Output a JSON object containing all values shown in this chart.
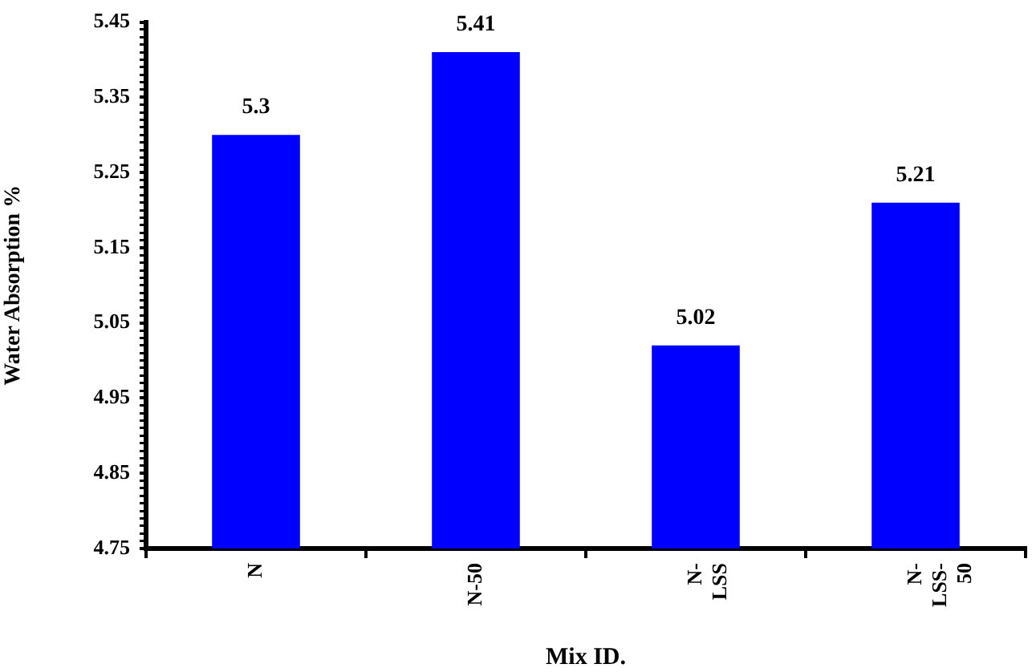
{
  "chart_data": {
    "type": "bar",
    "xlabel": "Mix ID.",
    "ylabel": "Water Absorption %",
    "categories": [
      "N",
      "N-50",
      "N-LSS",
      "N-LSS-50"
    ],
    "values": [
      5.3,
      5.41,
      5.02,
      5.21
    ],
    "color": "#0000ff",
    "ylim": [
      4.75,
      5.45
    ],
    "yticks": [
      4.75,
      {
        "value": 4.76,
        "label": null
      },
      {
        "value": 4.77,
        "label": null
      },
      {
        "value": 4.78,
        "label": null
      },
      {
        "value": 4.79,
        "label": null
      },
      {
        "value": 4.8,
        "label": null
      },
      {
        "value": 4.81,
        "label": null
      },
      {
        "value": 4.82,
        "label": null
      },
      {
        "value": 4.83,
        "label": null
      },
      {
        "value": 4.84,
        "label": null
      },
      4.85,
      {
        "value": 4.86,
        "label": null
      },
      {
        "value": 4.87,
        "label": null
      },
      {
        "value": 4.88,
        "label": null
      },
      {
        "value": 4.89,
        "label": null
      },
      {
        "value": 4.9,
        "label": null
      },
      {
        "value": 4.91,
        "label": null
      },
      {
        "value": 4.92,
        "label": null
      },
      {
        "value": 4.93,
        "label": null
      },
      {
        "value": 4.94,
        "label": null
      },
      4.95,
      {
        "value": 4.96,
        "label": null
      },
      {
        "value": 4.97,
        "label": null
      },
      {
        "value": 4.98,
        "label": null
      },
      {
        "value": 4.99,
        "label": null
      },
      {
        "value": 5.0,
        "label": null
      },
      {
        "value": 5.01,
        "label": null
      },
      {
        "value": 5.02,
        "label": null
      },
      {
        "value": 5.03,
        "label": null
      },
      {
        "value": 5.04,
        "label": null
      },
      5.05,
      {
        "value": 5.06,
        "label": null
      },
      {
        "value": 5.07,
        "label": null
      },
      {
        "value": 5.08,
        "label": null
      },
      {
        "value": 5.09,
        "label": null
      },
      {
        "value": 5.1,
        "label": null
      },
      {
        "value": 5.11,
        "label": null
      },
      {
        "value": 5.12,
        "label": null
      },
      {
        "value": 5.13,
        "label": null
      },
      {
        "value": 5.14,
        "label": null
      },
      5.15,
      {
        "value": 5.16,
        "label": null
      },
      {
        "value": 5.17,
        "label": null
      },
      {
        "value": 5.18,
        "label": null
      },
      {
        "value": 5.19,
        "label": null
      },
      {
        "value": 5.2,
        "label": null
      },
      {
        "value": 5.21,
        "label": null
      },
      {
        "value": 5.22,
        "label": null
      },
      {
        "value": 5.23,
        "label": null
      },
      {
        "value": 5.24,
        "label": null
      },
      5.25,
      {
        "value": 5.26,
        "label": null
      },
      {
        "value": 5.27,
        "label": null
      },
      {
        "value": 5.28,
        "label": null
      },
      {
        "value": 5.29,
        "label": null
      },
      {
        "value": 5.3,
        "label": null
      },
      {
        "value": 5.31,
        "label": null
      },
      {
        "value": 5.32,
        "label": null
      },
      {
        "value": 5.33,
        "label": null
      },
      {
        "value": 5.34,
        "label": null
      },
      5.35,
      {
        "value": 5.36,
        "label": null
      },
      {
        "value": 5.37,
        "label": null
      },
      {
        "value": 5.38,
        "label": null
      },
      {
        "value": 5.39,
        "label": null
      },
      {
        "value": 5.4,
        "label": null
      },
      {
        "value": 5.41,
        "label": null
      },
      {
        "value": 5.42,
        "label": null
      },
      {
        "value": 5.43,
        "label": null
      },
      {
        "value": 5.44,
        "label": null
      },
      5.45
    ],
    "grid": false,
    "legend": false,
    "data_labels": true
  }
}
